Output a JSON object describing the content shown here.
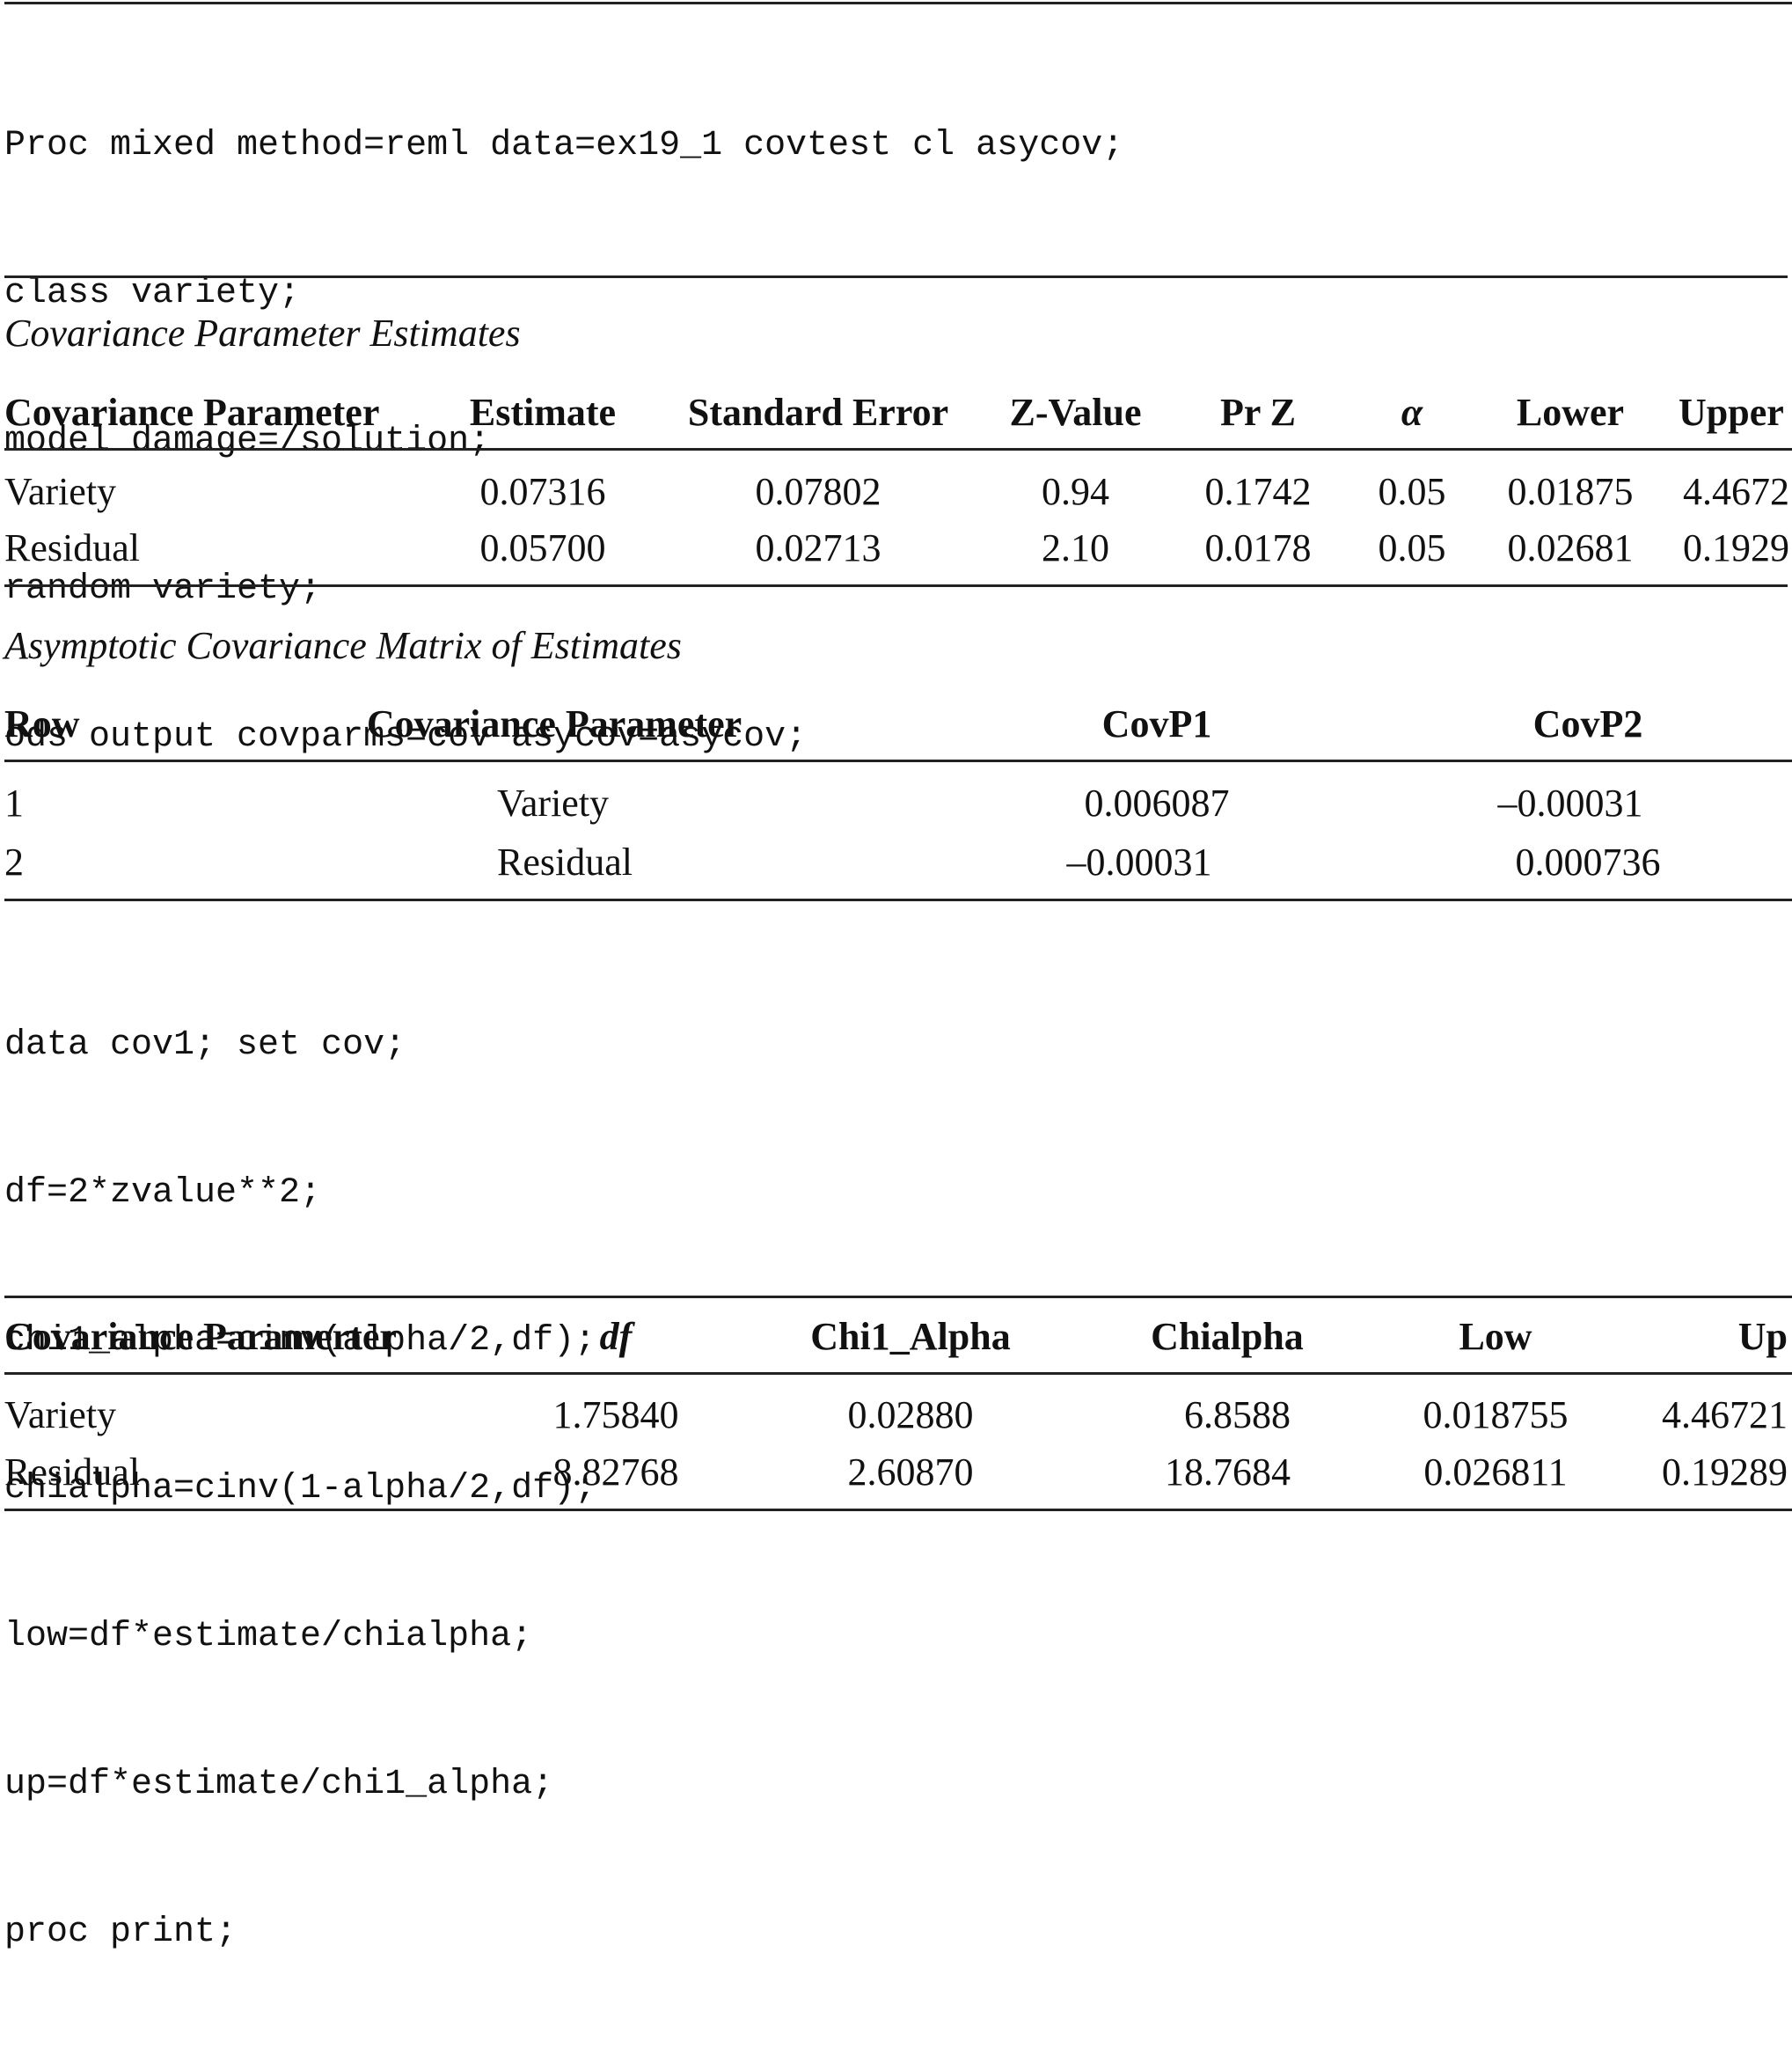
{
  "code1": [
    "Proc mixed method=reml data=ex19_1 covtest cl asycov;",
    "class variety;",
    "model damage=/solution;",
    "random variety;",
    "ods output covparms=cov asycov=asycov;"
  ],
  "table1": {
    "caption": "Covariance Parameter Estimates",
    "headers": [
      "Covariance Parameter",
      "Estimate",
      "Standard Error",
      "Z-Value",
      "Pr Z",
      "α",
      "Lower",
      "Upper"
    ],
    "rows": [
      [
        "Variety",
        "0.07316",
        "0.07802",
        "0.94",
        "0.1742",
        "0.05",
        "0.01875",
        "4.4672"
      ],
      [
        "Residual",
        "0.05700",
        "0.02713",
        "2.10",
        "0.0178",
        "0.05",
        "0.02681",
        "0.1929"
      ]
    ]
  },
  "table2": {
    "caption": "Asymptotic Covariance Matrix of Estimates",
    "headers": [
      "Row",
      "Covariance Parameter",
      "CovP1",
      "CovP2"
    ],
    "rows": [
      [
        "1",
        "Variety",
        "0.006087",
        "–0.00031"
      ],
      [
        "2",
        "Residual",
        "–0.00031",
        "0.000736"
      ]
    ]
  },
  "code2": [
    "data cov1; set cov;",
    "df=2*zvalue**2;",
    "chi1_alpha=cinv(alpha/2,df);",
    "chialpha=cinv(1-alpha/2,df);",
    "low=df*estimate/chialpha;",
    "up=df*estimate/chi1_alpha;",
    "proc print;"
  ],
  "table3": {
    "headers": [
      "Covariance Paramerter",
      "df",
      "Chi1_Alpha",
      "Chialpha",
      "Low",
      "Up"
    ],
    "rows": [
      [
        "Variety",
        "1.75840",
        "0.02880",
        "6.8588",
        "0.018755",
        "4.46721"
      ],
      [
        "Residual",
        "8.82768",
        "2.60870",
        "18.7684",
        "0.026811",
        "0.19289"
      ]
    ]
  }
}
